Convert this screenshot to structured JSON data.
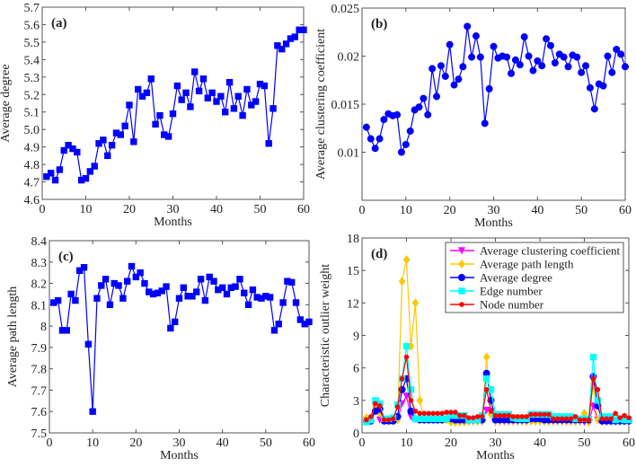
{
  "chart_data": [
    {
      "panel_label": "(a)",
      "type": "line",
      "marker": "square",
      "color": "#0000ff",
      "xlabel": "Months",
      "ylabel": "Average degree",
      "xlim": [
        0,
        60
      ],
      "ylim": [
        4.6,
        5.7
      ],
      "xticks": [
        0,
        10,
        20,
        30,
        40,
        50,
        60
      ],
      "yticks": [
        4.6,
        4.7,
        4.8,
        4.9,
        5.0,
        5.1,
        5.2,
        5.3,
        5.4,
        5.5,
        5.6,
        5.7
      ],
      "ytick_labels": [
        "4.6",
        "4.7",
        "4.8",
        "4.9",
        "5.0",
        "5.1",
        "5.2",
        "5.3",
        "5.4",
        "5.5",
        "5.6",
        "5.7"
      ],
      "series": [
        {
          "values": [
            4.73,
            4.75,
            4.71,
            4.77,
            4.88,
            4.91,
            4.89,
            4.87,
            4.71,
            4.72,
            4.76,
            4.79,
            4.92,
            4.94,
            4.85,
            4.91,
            4.98,
            4.97,
            5.02,
            5.14,
            4.93,
            5.23,
            5.19,
            5.21,
            5.29,
            5.03,
            5.08,
            4.97,
            4.96,
            5.09,
            5.25,
            5.17,
            5.21,
            5.13,
            5.33,
            5.22,
            5.29,
            5.18,
            5.21,
            5.16,
            5.19,
            5.1,
            5.27,
            5.12,
            5.19,
            5.08,
            5.23,
            5.14,
            5.16,
            5.26,
            5.25,
            4.92,
            5.12,
            5.48,
            5.46,
            5.49,
            5.52,
            5.53,
            5.57,
            5.57
          ]
        }
      ]
    },
    {
      "panel_label": "(b)",
      "type": "line",
      "marker": "circle",
      "color": "#0000ff",
      "xlabel": "Months",
      "ylabel": "Average clustering coefficient",
      "xlim": [
        0,
        60
      ],
      "ylim": [
        0.005,
        0.025
      ],
      "xticks": [
        0,
        10,
        20,
        30,
        40,
        50,
        60
      ],
      "yticks": [
        0.01,
        0.015,
        0.02,
        0.025
      ],
      "ytick_labels": [
        "0.01",
        "0.015",
        "0.02",
        "0.025"
      ],
      "series": [
        {
          "values": [
            0.0126,
            0.0114,
            0.0104,
            0.0114,
            0.0134,
            0.014,
            0.0138,
            0.0139,
            0.01,
            0.0108,
            0.0122,
            0.0144,
            0.0147,
            0.0156,
            0.0139,
            0.0187,
            0.0158,
            0.019,
            0.0179,
            0.0212,
            0.017,
            0.0176,
            0.0189,
            0.0231,
            0.0199,
            0.0221,
            0.0199,
            0.013,
            0.0166,
            0.021,
            0.0198,
            0.02,
            0.0199,
            0.0182,
            0.0196,
            0.0191,
            0.022,
            0.02,
            0.0185,
            0.0195,
            0.019,
            0.0218,
            0.0211,
            0.0193,
            0.0202,
            0.0199,
            0.0189,
            0.0201,
            0.0199,
            0.0183,
            0.019,
            0.0167,
            0.0145,
            0.0171,
            0.0169,
            0.02,
            0.0183,
            0.0207,
            0.0202,
            0.0189
          ]
        }
      ]
    },
    {
      "panel_label": "(c)",
      "type": "line",
      "marker": "square",
      "color": "#0000ff",
      "xlabel": "Months",
      "ylabel": "Average path length",
      "xlim": [
        0,
        60
      ],
      "ylim": [
        7.5,
        8.4
      ],
      "xticks": [
        0,
        10,
        20,
        30,
        40,
        50,
        60
      ],
      "yticks": [
        7.5,
        7.6,
        7.7,
        7.8,
        7.9,
        8.0,
        8.1,
        8.2,
        8.3,
        8.4
      ],
      "ytick_labels": [
        "7.5",
        "7.6",
        "7.7",
        "7.8",
        "7.9",
        "8",
        "8.1",
        "8.2",
        "8.3",
        "8.4"
      ],
      "series": [
        {
          "values": [
            8.11,
            8.12,
            7.98,
            7.98,
            8.15,
            8.12,
            8.26,
            8.275,
            7.915,
            7.6,
            8.13,
            8.19,
            8.22,
            8.1,
            8.2,
            8.19,
            8.13,
            8.21,
            8.28,
            8.23,
            8.25,
            8.2,
            8.16,
            8.15,
            8.155,
            8.165,
            8.185,
            7.99,
            8.02,
            8.13,
            8.18,
            8.14,
            8.14,
            8.16,
            8.22,
            8.12,
            8.23,
            8.21,
            8.17,
            8.18,
            8.15,
            8.18,
            8.185,
            8.22,
            8.155,
            8.1,
            8.17,
            8.135,
            8.13,
            8.14,
            8.135,
            7.98,
            8.01,
            8.11,
            8.21,
            8.205,
            8.11,
            8.03,
            8.01,
            8.02
          ]
        }
      ]
    },
    {
      "panel_label": "(d)",
      "type": "line",
      "xlabel": "Months",
      "ylabel": "Characteristic outlier weight",
      "xlim": [
        0,
        60
      ],
      "ylim": [
        0,
        18
      ],
      "xticks": [
        0,
        10,
        20,
        30,
        40,
        50,
        60
      ],
      "yticks": [
        0,
        3,
        6,
        9,
        12,
        15,
        18
      ],
      "ytick_labels": [
        "0",
        "3",
        "6",
        "9",
        "12",
        "15",
        "18"
      ],
      "legend_position": "top-right",
      "series": [
        {
          "name": "Average clustering coefficient",
          "color": "#ff00ff",
          "marker": "triangle-down",
          "values": [
            1.2,
            1.2,
            2.5,
            1.2,
            1.1,
            1.2,
            1.2,
            1.2,
            2.7,
            3.4,
            1.5,
            1.3,
            1.2,
            1.2,
            1.2,
            1.2,
            1.2,
            1.2,
            1.2,
            1.0,
            1.0,
            1.0,
            1.0,
            1.0,
            1.0,
            1.0,
            1.0,
            2.1,
            2.0,
            1.0,
            1.0,
            1.0,
            1.0,
            1.0,
            1.0,
            1.0,
            1.0,
            1.0,
            1.0,
            1.0,
            1.0,
            1.0,
            1.0,
            1.0,
            1.0,
            1.0,
            1.0,
            1.0,
            1.0,
            1.0,
            1.0,
            2.5,
            1.2,
            1.0,
            1.0,
            1.0,
            1.0,
            1.0,
            1.0,
            1.0
          ]
        },
        {
          "name": "Average path length",
          "color": "#ffc800",
          "marker": "diamond",
          "values": [
            1.4,
            1.3,
            2.5,
            1.8,
            1.2,
            1.2,
            1.2,
            1.2,
            14,
            16,
            8,
            12,
            3,
            1.2,
            1.2,
            1.2,
            1.2,
            1.2,
            1.2,
            1.0,
            1.0,
            1.0,
            1.0,
            1.1,
            1.1,
            1.1,
            1.1,
            7,
            1.7,
            1.1,
            1.1,
            1.1,
            1.1,
            1.1,
            1.1,
            1.1,
            1.1,
            1.1,
            1.1,
            1.1,
            1.1,
            1.1,
            1.1,
            1.1,
            1.1,
            1.1,
            1.1,
            1.1,
            1.1,
            1.8,
            1.0,
            4.5,
            1.2,
            1.1,
            1.1,
            1.1,
            1.1,
            1.1,
            1.1,
            1.1
          ]
        },
        {
          "name": "Average degree",
          "color": "#0000ff",
          "marker": "circle",
          "values": [
            1.1,
            1.1,
            2.0,
            2.2,
            1.1,
            1.1,
            1.1,
            1.5,
            4,
            5,
            2,
            1.3,
            1.2,
            1.2,
            1.2,
            1.2,
            1.2,
            1.2,
            1.3,
            1.3,
            1.2,
            1.2,
            1.2,
            1.2,
            1.2,
            1.2,
            1.2,
            5.5,
            3,
            1.2,
            1.2,
            1.2,
            1.2,
            1.2,
            1.2,
            1.2,
            1.2,
            1.3,
            1.3,
            1.3,
            1.2,
            1.2,
            1.2,
            1.2,
            1.2,
            1.2,
            1.2,
            1.2,
            1.2,
            1.2,
            1.2,
            5.2,
            2.5,
            1.1,
            1.1,
            1.1,
            1.1,
            1.1,
            1.1,
            1.1
          ]
        },
        {
          "name": "Edge number",
          "color": "#00ffff",
          "marker": "square",
          "values": [
            1.0,
            1.2,
            3.0,
            2.7,
            1.3,
            1.3,
            1.4,
            2.6,
            5,
            8,
            4,
            1.3,
            1.3,
            1.3,
            1.3,
            1.3,
            1.3,
            1.3,
            1.3,
            1.6,
            1.6,
            1.6,
            1.6,
            1.2,
            1.2,
            1.2,
            1.6,
            5,
            4,
            1.7,
            1.7,
            1.7,
            1.7,
            1.4,
            1.3,
            1.3,
            1.3,
            1.7,
            1.7,
            1.7,
            1.7,
            1.7,
            1.5,
            1.5,
            1.5,
            1.5,
            1.5,
            1.3,
            1.3,
            1.3,
            1.3,
            7,
            3,
            1.5,
            1.5,
            1.5,
            1.2,
            1.3,
            1.2,
            1.2
          ]
        },
        {
          "name": "Node number",
          "color": "#ff0000",
          "marker": "star",
          "values": [
            1.2,
            1.5,
            2.7,
            2.5,
            1.2,
            1.2,
            1.3,
            2.4,
            5,
            7,
            3,
            2,
            1.8,
            1.8,
            1.8,
            1.8,
            1.8,
            1.8,
            1.9,
            1.9,
            1.9,
            1.6,
            1.6,
            1.4,
            1.4,
            1.5,
            1.5,
            4,
            2,
            1.6,
            1.6,
            1.6,
            1.6,
            1.5,
            1.5,
            1.5,
            1.5,
            1.7,
            1.7,
            1.7,
            1.7,
            1.7,
            1.3,
            1.3,
            1.3,
            1.3,
            1.3,
            1.5,
            1.2,
            1.2,
            1.2,
            5,
            4,
            1.3,
            1.3,
            1.3,
            1.8,
            1.4,
            1.6,
            1.4
          ]
        }
      ]
    }
  ]
}
